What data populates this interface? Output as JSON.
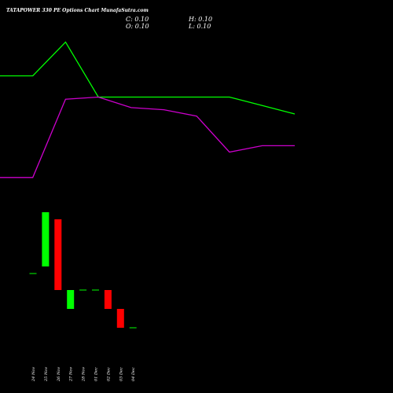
{
  "header": {
    "title": "TATAPOWER 330 PE Options Chart MunafaSutra.com",
    "close_label": "C: 0.10",
    "open_label": "O: 0.10",
    "high_label": "H: 0.10",
    "low_label": "L: 0.10"
  },
  "colors": {
    "background": "#000000",
    "up": "#00ff00",
    "down": "#ff0000",
    "ma_short": "#00ff00",
    "ma_long": "#cc00cc",
    "text": "#ffffff"
  },
  "chart_data": [
    {
      "type": "line",
      "series": [
        {
          "values": [
            1.55,
            1.55,
            2.35,
            1.05,
            1.05,
            1.05,
            1.05,
            1.05,
            0.85,
            0.65,
            0.65
          ]
        },
        {
          "values": [
            -0.85,
            -0.85,
            1.0,
            1.05,
            0.8,
            0.75,
            0.6,
            -0.25,
            -0.1,
            -0.1
          ]
        }
      ]
    },
    {
      "type": "bar",
      "categories": [
        "24 Nov",
        "25 Nov",
        "26 Nov",
        "27 Nov",
        "28 Nov",
        "01 Dec",
        "02 Dec",
        "03 Dec",
        "04 Dec"
      ],
      "candles": [
        {
          "open": 1.9,
          "close": 1.9
        },
        {
          "open": 2.2,
          "close": 4.5
        },
        {
          "open": 4.2,
          "close": 1.2
        },
        {
          "open": 0.4,
          "close": 1.2
        },
        {
          "open": 1.2,
          "close": 1.2
        },
        {
          "open": 1.2,
          "close": 1.2
        },
        {
          "open": 1.2,
          "close": 0.4
        },
        {
          "open": 0.4,
          "close": -0.4
        },
        {
          "open": -0.4,
          "close": -0.4
        }
      ]
    }
  ]
}
